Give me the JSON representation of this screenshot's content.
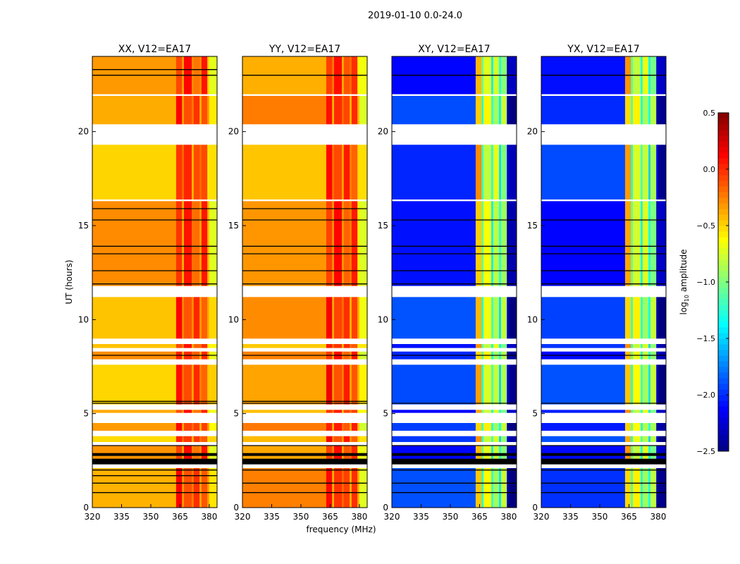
{
  "chart_data": {
    "type": "heatmap",
    "title": "2019-01-10 0.0-24.0",
    "xlabel": "frequency (MHz)",
    "ylabel": "UT (hours)",
    "xlim": [
      320,
      384
    ],
    "ylim": [
      0,
      24
    ],
    "xticks": [
      "320",
      "335",
      "350",
      "365",
      "380"
    ],
    "xtick_values": [
      320,
      335,
      350,
      365,
      380
    ],
    "yticks": [
      "0",
      "5",
      "10",
      "15",
      "20"
    ],
    "ytick_values": [
      0,
      5,
      10,
      15,
      20
    ],
    "colorbar": {
      "label": "log10 amplitude",
      "label_main": "log",
      "label_sub": "10",
      "label_rest": " amplitude",
      "range": [
        -2.5,
        0.5
      ],
      "ticks": [
        "0.5",
        "0.0",
        "−0.5",
        "−1.0",
        "−1.5",
        "−2.0",
        "−2.5"
      ],
      "tick_values": [
        0.5,
        0.0,
        -0.5,
        -1.0,
        -1.5,
        -2.0,
        -2.5
      ],
      "colormap": "jet"
    },
    "time_segments": [
      [
        0.0,
        2.1
      ],
      [
        2.6,
        3.3
      ],
      [
        3.5,
        3.8
      ],
      [
        4.1,
        4.5
      ],
      [
        5.05,
        5.2
      ],
      [
        5.5,
        7.6
      ],
      [
        7.9,
        8.3
      ],
      [
        8.5,
        8.7
      ],
      [
        9.0,
        11.2
      ],
      [
        11.8,
        16.3
      ],
      [
        16.4,
        19.3
      ],
      [
        20.4,
        21.9
      ],
      [
        22.0,
        24.0
      ]
    ],
    "black_bands": [
      [
        2.3,
        2.6
      ],
      [
        2.75,
        2.9
      ]
    ],
    "freq_bins": [
      [
        320,
        363
      ],
      [
        363,
        366
      ],
      [
        366,
        367
      ],
      [
        367,
        371
      ],
      [
        371,
        372
      ],
      [
        372,
        375
      ],
      [
        375,
        376
      ],
      [
        376,
        379
      ],
      [
        379,
        380
      ],
      [
        380,
        384
      ]
    ],
    "panels": [
      {
        "title": "XX, V12=EA17",
        "values": [
          -0.4,
          0.02,
          -0.3,
          0.0,
          -0.3,
          -0.1,
          -0.3,
          -0.05,
          -0.45,
          -0.6
        ],
        "flag_lines": [
          0.8,
          1.3,
          1.7,
          2.0,
          3.3,
          5.55,
          5.65,
          8.1,
          11.9,
          12.6,
          13.5,
          13.9,
          15.3,
          15.9,
          23.0,
          23.3
        ]
      },
      {
        "title": "YY, V12=EA17",
        "values": [
          -0.35,
          0.05,
          -0.3,
          0.0,
          -0.3,
          -0.05,
          -0.3,
          -0.05,
          -0.5,
          -0.65
        ],
        "flag_lines": [
          0.8,
          1.3,
          2.0,
          3.3,
          5.55,
          5.65,
          8.1,
          11.9,
          12.6,
          13.5,
          13.9,
          15.3,
          15.9,
          23.0
        ]
      },
      {
        "title": "XY, V12=EA17",
        "values": [
          -2.0,
          -0.4,
          -1.2,
          -0.7,
          -1.3,
          -0.8,
          -1.4,
          -0.9,
          -2.3,
          -2.4
        ],
        "flag_lines": [
          0.8,
          1.3,
          2.0,
          3.3,
          5.55,
          8.1,
          11.9,
          12.6,
          13.5,
          13.9,
          15.3,
          23.0
        ]
      },
      {
        "title": "YX, V12=EA17",
        "values": [
          -2.0,
          -0.4,
          -1.2,
          -0.7,
          -1.3,
          -0.8,
          -1.4,
          -0.9,
          -2.3,
          -2.4
        ],
        "flag_lines": [
          0.8,
          1.3,
          2.0,
          3.3,
          5.55,
          8.1,
          11.9,
          12.6,
          13.5,
          13.9,
          15.3,
          23.0
        ]
      }
    ]
  }
}
